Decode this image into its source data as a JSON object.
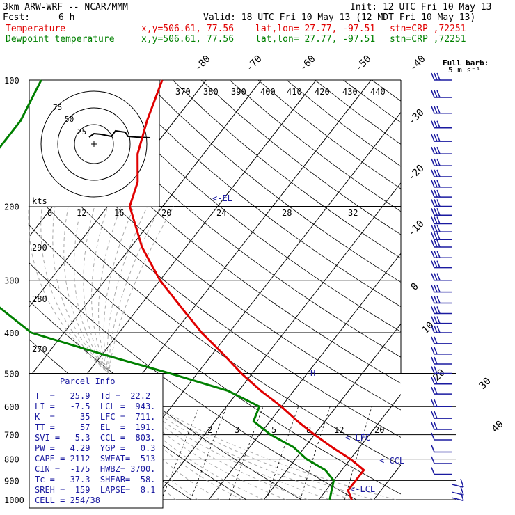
{
  "header": {
    "model": "3km ARW-WRF -- NCAR/MMM",
    "init": "Init: 12 UTC Fri 10 May 13",
    "fcst_label": "Fcst:",
    "fcst_value": "6 h",
    "valid": "Valid: 18 UTC Fri 10 May 13 (12 MDT Fri 10 May 13)",
    "temp_label": "Temperature",
    "dew_label": "Dewpoint temperature",
    "xy": "x,y=506.61, 77.56",
    "latlon": "lat,lon= 27.77, -97.51",
    "stn": "stn=CRP ,72251"
  },
  "barb_legend": {
    "title": "Full barb:",
    "units": "5 m s⁻¹"
  },
  "colors": {
    "temperature": "#e00000",
    "dewpoint": "#008000",
    "wind": "#1a1aa0",
    "grid": "#000000",
    "wetadiabat": "#aaaaaa"
  },
  "chart_data": {
    "type": "line",
    "chart_kind": "skew-T log-p sounding",
    "pressure_levels": [
      "100",
      "200",
      "300",
      "400",
      "500",
      "600",
      "700",
      "800",
      "900",
      "1000"
    ],
    "temp_iso_labels": [
      "-80",
      "-70",
      "-60",
      "-50",
      "-40",
      "-30",
      "-20",
      "-10",
      "0",
      "10",
      "20",
      "30",
      "40"
    ],
    "theta_e_labels": [
      "370",
      "380",
      "390",
      "400",
      "410",
      "420",
      "430",
      "440"
    ],
    "wind_speed_labels": [
      "kts",
      "8",
      "12",
      "16",
      "20",
      "24",
      "28",
      "32"
    ],
    "theta_labels": [
      "290",
      "280",
      "270"
    ],
    "mixing_ratio_labels": [
      "2",
      "3",
      "5",
      "8",
      "12",
      "20"
    ],
    "hodograph_rings": [
      "75",
      "50",
      "25"
    ],
    "annotations": {
      "el": "<-EL",
      "lfc": "<-LFC",
      "ccl": "<-CCL",
      "lcl": "<-LCL",
      "h": "H"
    },
    "series": [
      {
        "name": "Temperature",
        "points": [
          [
            100,
            -68
          ],
          [
            125,
            -65
          ],
          [
            150,
            -62
          ],
          [
            175,
            -58
          ],
          [
            200,
            -56
          ],
          [
            250,
            -48
          ],
          [
            300,
            -40
          ],
          [
            350,
            -32
          ],
          [
            400,
            -25
          ],
          [
            450,
            -18
          ],
          [
            500,
            -12
          ],
          [
            550,
            -6
          ],
          [
            600,
            0
          ],
          [
            650,
            5
          ],
          [
            700,
            10
          ],
          [
            750,
            15
          ],
          [
            800,
            20
          ],
          [
            850,
            24
          ],
          [
            900,
            24
          ],
          [
            950,
            24
          ],
          [
            1000,
            26
          ]
        ]
      },
      {
        "name": "Dewpoint temperature",
        "points": [
          [
            100,
            -90
          ],
          [
            125,
            -88
          ],
          [
            150,
            -88
          ],
          [
            175,
            -90
          ],
          [
            200,
            -92
          ],
          [
            250,
            -86
          ],
          [
            300,
            -75
          ],
          [
            350,
            -65
          ],
          [
            400,
            -56
          ],
          [
            450,
            -40
          ],
          [
            500,
            -25
          ],
          [
            550,
            -12
          ],
          [
            600,
            -4
          ],
          [
            650,
            -3
          ],
          [
            700,
            2
          ],
          [
            750,
            8
          ],
          [
            800,
            12
          ],
          [
            850,
            17
          ],
          [
            900,
            20
          ],
          [
            950,
            21
          ],
          [
            1000,
            22
          ]
        ]
      }
    ],
    "wind_levels_hpa": [
      100,
      110,
      120,
      130,
      140,
      150,
      160,
      170,
      180,
      190,
      200,
      210,
      220,
      230,
      240,
      250,
      265,
      280,
      300,
      320,
      340,
      360,
      380,
      400,
      425,
      450,
      475,
      500,
      530,
      560,
      600,
      640,
      680,
      720,
      770,
      820,
      870,
      920,
      960,
      990
    ]
  },
  "parcel": {
    "title": "Parcel Info",
    "rows": [
      "T  =   25.9  Td =  22.2",
      "LI =   -7.5  LCL =  943.",
      "K  =     35  LFC =  711.",
      "TT =     57  EL  =  191.",
      "SVI =  -5.3  CCL =  803.",
      "PW =   4.29  YGP =   0.3",
      "CAPE = 2112  SWEAT=  513",
      "CIN =  -175  HWBZ= 3700.",
      "Tc =   37.3  SHEAR=  58.",
      "SREH =  159  LAPSE=  8.1",
      "CELL = 254/38"
    ]
  }
}
